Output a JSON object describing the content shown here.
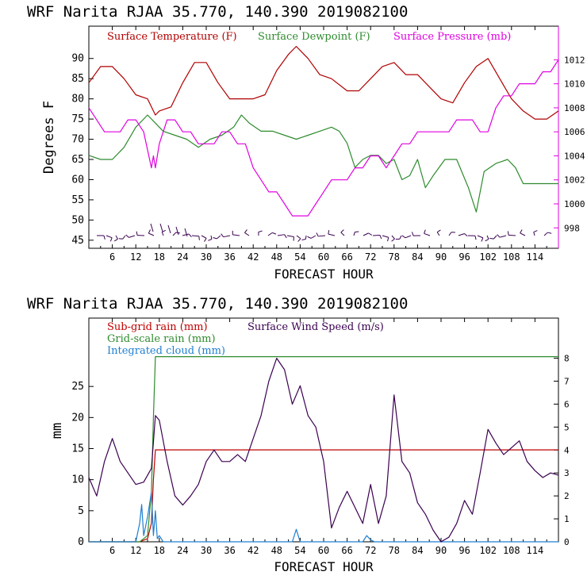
{
  "colors": {
    "temperature": "#b00000",
    "dewpoint": "#2e8b2e",
    "pressure": "#e000e0",
    "subgrid_rain": "#c00000",
    "gridscale_rain": "#2e8b2e",
    "cloud": "#1e7fd0",
    "wind_speed": "#3a0050",
    "barbs": "#3a0050"
  },
  "top_chart": {
    "title": "WRF   Narita RJAA    35.770, 140.390  2019082100",
    "xlabel": "FORECAST HOUR",
    "ylabel": "Degrees F",
    "legend": {
      "temperature": "Surface Temperature (F)",
      "dewpoint": "Surface Dewpoint (F)",
      "pressure": "Surface Pressure (mb)"
    }
  },
  "bottom_chart": {
    "title": "WRF   Narita RJAA    35.770, 140.390  2019082100",
    "xlabel": "FORECAST HOUR",
    "ylabel": "mm",
    "legend": {
      "subgrid": "Sub-grid rain (mm)",
      "gridscale": "Grid-scale rain (mm)",
      "cloud": "Integrated cloud (mm)",
      "wind": "Surface Wind Speed (m/s)"
    }
  },
  "chart_data": [
    {
      "type": "line",
      "title": "WRF   Narita RJAA    35.770, 140.390  2019082100",
      "xlabel": "FORECAST HOUR",
      "ylabel": "Degrees F",
      "x_ticks": [
        "6",
        "12",
        "18",
        "24",
        "30",
        "36",
        "42",
        "48",
        "54",
        "60",
        "66",
        "72",
        "78",
        "84",
        "90",
        "96",
        "102",
        "108",
        "114"
      ],
      "x_tick_values": [
        6,
        12,
        18,
        24,
        30,
        36,
        42,
        48,
        54,
        60,
        66,
        72,
        78,
        84,
        90,
        96,
        102,
        108,
        114
      ],
      "xlim": [
        0,
        120
      ],
      "ylim": [
        43,
        98
      ],
      "y_ticks": [
        "45",
        "50",
        "55",
        "60",
        "65",
        "70",
        "75",
        "80",
        "85",
        "90"
      ],
      "y_tick_values": [
        45,
        50,
        55,
        60,
        65,
        70,
        75,
        80,
        85,
        90
      ],
      "y2lim": [
        996.3,
        1014.8
      ],
      "y2_ticks": [
        "998",
        "1000",
        "1002",
        "1004",
        "1006",
        "1008",
        "1010",
        "1012"
      ],
      "y2_tick_values": [
        998,
        1000,
        1002,
        1004,
        1006,
        1008,
        1010,
        1012
      ],
      "series": [
        {
          "name": "Surface Temperature (F)",
          "axis": "left",
          "x": [
            0,
            3,
            6,
            9,
            12,
            15,
            17,
            18,
            21,
            24,
            27,
            30,
            33,
            36,
            39,
            42,
            45,
            48,
            51,
            53,
            56,
            59,
            62,
            66,
            69,
            72,
            75,
            78,
            81,
            84,
            87,
            90,
            93,
            96,
            99,
            102,
            105,
            108,
            111,
            114,
            117,
            120
          ],
          "values": [
            84,
            88,
            88,
            85,
            81,
            80,
            76,
            77,
            78,
            84,
            89,
            89,
            84,
            80,
            80,
            80,
            81,
            87,
            91,
            93,
            90,
            86,
            85,
            82,
            82,
            85,
            88,
            89,
            86,
            86,
            83,
            80,
            79,
            84,
            88,
            90,
            85,
            80,
            77,
            75,
            75,
            77
          ]
        },
        {
          "name": "Surface Dewpoint (F)",
          "axis": "left",
          "x": [
            0,
            3,
            6,
            9,
            12,
            15,
            17,
            19,
            22,
            25,
            28,
            31,
            34,
            37,
            39,
            41,
            44,
            47,
            50,
            53,
            56,
            59,
            62,
            64,
            66,
            68,
            70,
            72,
            74,
            76,
            78,
            80,
            82,
            84,
            86,
            88,
            91,
            94,
            97,
            99,
            101,
            104,
            107,
            109,
            111,
            114,
            117,
            120
          ],
          "values": [
            66,
            65,
            65,
            68,
            73,
            76,
            74,
            72,
            71,
            70,
            68,
            70,
            71,
            73,
            76,
            74,
            72,
            72,
            71,
            70,
            71,
            72,
            73,
            72,
            69,
            63,
            65,
            66,
            66,
            64,
            65,
            60,
            61,
            65,
            58,
            61,
            65,
            65,
            58,
            52,
            62,
            64,
            65,
            63,
            59,
            59,
            59,
            59
          ]
        },
        {
          "name": "Surface Pressure (mb)",
          "axis": "right",
          "x": [
            0,
            2,
            4,
            6,
            8,
            10,
            12,
            14,
            16,
            16.5,
            17,
            18,
            20,
            22,
            24,
            26,
            28,
            30,
            32,
            34,
            36,
            38,
            40,
            42,
            44,
            46,
            48,
            50,
            52,
            54,
            56,
            58,
            60,
            62,
            64,
            66,
            68,
            70,
            72,
            74,
            76,
            78,
            80,
            82,
            84,
            86,
            88,
            90,
            92,
            94,
            96,
            98,
            100,
            102,
            104,
            106,
            108,
            110,
            112,
            114,
            116,
            118,
            120
          ],
          "values": [
            1008,
            1007,
            1006,
            1006,
            1006,
            1007,
            1007,
            1006,
            1003,
            1004,
            1003,
            1005,
            1007,
            1007,
            1006,
            1006,
            1005,
            1005,
            1005,
            1006,
            1006,
            1005,
            1005,
            1003,
            1002,
            1001,
            1001,
            1000,
            999,
            999,
            999,
            1000,
            1001,
            1002,
            1002,
            1002,
            1003,
            1003,
            1004,
            1004,
            1003,
            1004,
            1005,
            1005,
            1006,
            1006,
            1006,
            1006,
            1006,
            1007,
            1007,
            1007,
            1006,
            1006,
            1008,
            1009,
            1009,
            1010,
            1010,
            1010,
            1011,
            1011,
            1012
          ]
        }
      ]
    },
    {
      "type": "line",
      "title": "WRF   Narita RJAA    35.770, 140.390  2019082100",
      "xlabel": "FORECAST HOUR",
      "ylabel": "mm",
      "x_ticks": [
        "6",
        "12",
        "18",
        "24",
        "30",
        "36",
        "42",
        "48",
        "54",
        "60",
        "66",
        "72",
        "78",
        "84",
        "90",
        "96",
        "102",
        "108",
        "114"
      ],
      "x_tick_values": [
        6,
        12,
        18,
        24,
        30,
        36,
        42,
        48,
        54,
        60,
        66,
        72,
        78,
        84,
        90,
        96,
        102,
        108,
        114
      ],
      "xlim": [
        0,
        120
      ],
      "ylim": [
        0,
        36
      ],
      "y_ticks": [
        "0",
        "5",
        "10",
        "15",
        "20",
        "25"
      ],
      "y_tick_values": [
        0,
        5,
        10,
        15,
        20,
        25
      ],
      "y2lim": [
        0,
        9.75
      ],
      "y2_ticks": [
        "0",
        "1",
        "2",
        "3",
        "4",
        "5",
        "6",
        "7",
        "8"
      ],
      "y2_tick_values": [
        0,
        1,
        2,
        3,
        4,
        5,
        6,
        7,
        8
      ],
      "series": [
        {
          "name": "Sub-grid rain (mm)",
          "axis": "left",
          "x": [
            0,
            13,
            15,
            16,
            16.5,
            17,
            120
          ],
          "values": [
            0,
            0,
            0.5,
            3,
            10,
            14.8,
            14.8
          ]
        },
        {
          "name": "Grid-scale rain (mm)",
          "axis": "left",
          "x": [
            0,
            13,
            15,
            16,
            16.5,
            17,
            120
          ],
          "values": [
            0,
            0,
            1,
            8,
            20,
            29.8,
            29.8
          ]
        },
        {
          "name": "Integrated cloud (mm)",
          "axis": "left",
          "x": [
            0,
            12,
            13,
            13.5,
            14,
            15,
            16,
            16.5,
            17,
            17.5,
            18,
            19,
            30,
            52,
            53,
            53.5,
            54,
            55,
            70,
            71,
            72,
            73,
            120
          ],
          "values": [
            0,
            0,
            3,
            6,
            1,
            4,
            8,
            1,
            5,
            0.5,
            1,
            0,
            0,
            0,
            2,
            1,
            0,
            0,
            0,
            1,
            0.3,
            0,
            0
          ]
        },
        {
          "name": "Surface Wind Speed (m/s)",
          "axis": "right",
          "x": [
            0,
            2,
            4,
            6,
            8,
            10,
            12,
            14,
            16,
            17,
            18,
            20,
            22,
            24,
            26,
            28,
            30,
            32,
            34,
            36,
            38,
            40,
            42,
            44,
            46,
            48,
            50,
            52,
            54,
            56,
            58,
            60,
            62,
            64,
            66,
            68,
            70,
            72,
            74,
            76,
            78,
            80,
            82,
            84,
            86,
            88,
            90,
            92,
            94,
            96,
            98,
            100,
            102,
            104,
            106,
            108,
            110,
            112,
            114,
            116,
            118,
            120
          ],
          "values": [
            2.8,
            2,
            3.5,
            4.5,
            3.5,
            3,
            2.5,
            2.6,
            3.2,
            5.5,
            5.3,
            3.5,
            2,
            1.6,
            2,
            2.5,
            3.5,
            4,
            3.5,
            3.5,
            3.8,
            3.5,
            4.5,
            5.5,
            7,
            8,
            7.5,
            6,
            6.8,
            5.5,
            5,
            3.5,
            0.6,
            1.5,
            2.2,
            1.5,
            0.8,
            2.5,
            0.8,
            2,
            6.4,
            3.5,
            3,
            1.7,
            1.2,
            0.5,
            0,
            0.2,
            0.8,
            1.8,
            1.2,
            3,
            4.9,
            4.3,
            3.8,
            4.1,
            4.4,
            3.5,
            3.1,
            2.8,
            3,
            2.9
          ]
        }
      ]
    }
  ]
}
